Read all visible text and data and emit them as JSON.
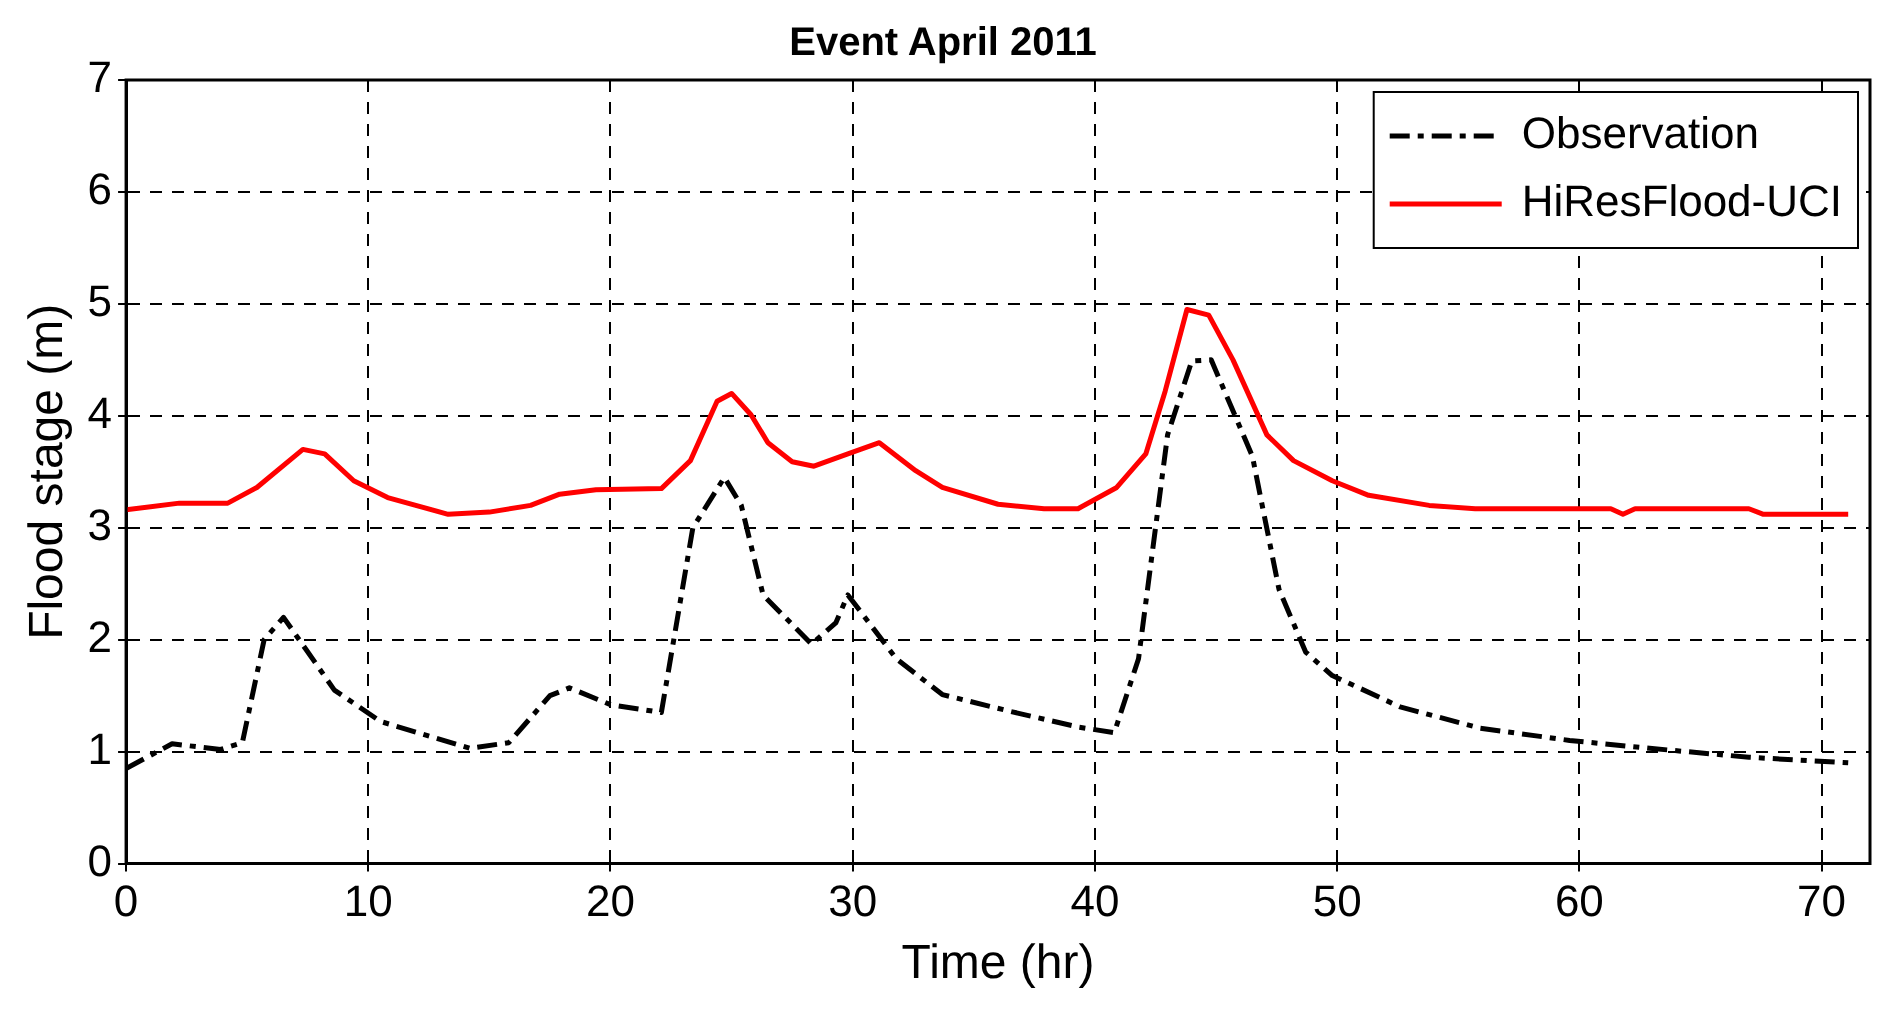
{
  "chart_data": {
    "type": "line",
    "title": "Event April 2011",
    "xlabel": "Time (hr)",
    "ylabel": "Flood stage (m)",
    "xlim": [
      0,
      72
    ],
    "xticks": [
      0,
      10,
      20,
      30,
      40,
      50,
      60,
      70
    ],
    "ylim": [
      0,
      7
    ],
    "yticks": [
      0,
      1,
      2,
      3,
      4,
      5,
      6,
      7
    ],
    "grid": true,
    "legend": "top right",
    "marker": "none",
    "series": [
      {
        "name": "Observation",
        "color": "#000000",
        "line_style": "dashed",
        "x": [
          0,
          1.9,
          3.9,
          4.8,
          5.7,
          6.5,
          8.6,
          10.5,
          14.2,
          15.8,
          17.5,
          18.3,
          20,
          22.1,
          23.4,
          24.7,
          25.4,
          26.3,
          28.3,
          29.3,
          29.8,
          31.8,
          33.7,
          36.5,
          39.3,
          40.8,
          41.8,
          43,
          44,
          44.8,
          46.5,
          47.6,
          48.7,
          49.8,
          52.6,
          55.9,
          59.6,
          62.9,
          67,
          71.1
        ],
        "values": [
          0.85,
          1.07,
          1.02,
          1.08,
          2.0,
          2.2,
          1.55,
          1.27,
          1.03,
          1.08,
          1.5,
          1.57,
          1.42,
          1.35,
          3.0,
          3.45,
          3.2,
          2.4,
          1.96,
          2.15,
          2.4,
          1.83,
          1.51,
          1.36,
          1.22,
          1.17,
          1.83,
          3.83,
          4.49,
          4.5,
          3.64,
          2.45,
          1.89,
          1.68,
          1.4,
          1.21,
          1.1,
          1.03,
          0.95,
          0.9
        ]
      },
      {
        "name": "HiResFlood-UCI",
        "color": "#ff0000",
        "line_style": "solid",
        "x": [
          0,
          2.2,
          4.2,
          5.4,
          7.3,
          8.2,
          9.4,
          10.8,
          13.3,
          15,
          16.7,
          17.9,
          19.4,
          22.1,
          23.3,
          24.4,
          25,
          25.8,
          26.5,
          27.5,
          28.4,
          29.8,
          31.1,
          32.6,
          33.7,
          36,
          37.9,
          39.3,
          40.9,
          42.1,
          42.9,
          43.8,
          44.7,
          45.7,
          47.1,
          48.2,
          49.8,
          51.3,
          53.8,
          55.7,
          61.3,
          61.8,
          62.3,
          67,
          67.6,
          71.1
        ],
        "values": [
          3.16,
          3.22,
          3.22,
          3.36,
          3.7,
          3.66,
          3.42,
          3.27,
          3.12,
          3.14,
          3.2,
          3.3,
          3.34,
          3.35,
          3.6,
          4.13,
          4.2,
          4.01,
          3.76,
          3.59,
          3.55,
          3.66,
          3.76,
          3.51,
          3.36,
          3.21,
          3.17,
          3.17,
          3.36,
          3.66,
          4.22,
          4.95,
          4.9,
          4.5,
          3.83,
          3.6,
          3.42,
          3.29,
          3.2,
          3.17,
          3.17,
          3.12,
          3.17,
          3.17,
          3.12,
          3.12
        ]
      }
    ]
  }
}
